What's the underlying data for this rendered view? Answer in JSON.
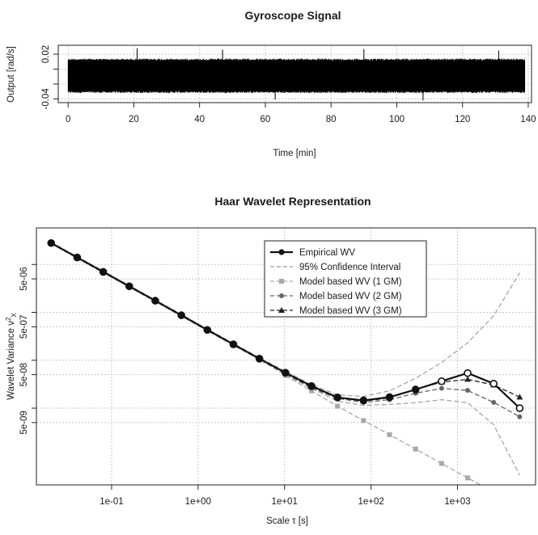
{
  "chart_data": [
    {
      "type": "line",
      "title": "Gyroscope Signal",
      "xlabel": "Time [min]",
      "ylabel": "Output [rad/s]",
      "xlim": [
        -3,
        141
      ],
      "ylim": [
        -0.045,
        0.032
      ],
      "x_ticks": [
        0,
        20,
        40,
        60,
        80,
        100,
        120,
        140
      ],
      "x_tick_labels": [
        "0",
        "20",
        "40",
        "60",
        "80",
        "100",
        "120",
        "140"
      ],
      "y_ticks": [
        -0.04,
        0.02
      ],
      "y_tick_labels": [
        "-0.04",
        "0.02"
      ],
      "grid": true,
      "signal": {
        "x_start": 0,
        "x_end": 139,
        "center": -0.009,
        "band_half_width": 0.0225,
        "spike_max": 0.028,
        "spike_min": -0.042
      }
    },
    {
      "type": "line",
      "title": "Haar Wavelet Representation",
      "xlabel": "Scale τ [s]",
      "ylabel": "Wavelet Variance ν",
      "ylabel_subscript": "X",
      "ylabel_accent": "2",
      "x_log": true,
      "y_log": true,
      "xlim": [
        0.0135,
        8000
      ],
      "ylim": [
        2.5e-10,
        5.8e-05
      ],
      "x_tick_labels": [
        "1e-01",
        "1e+00",
        "1e+01",
        "1e+02",
        "1e+03"
      ],
      "y_tick_labels": [
        "5e-09",
        "5e-08",
        "5e-07",
        "5e-06"
      ],
      "grid": true,
      "legend_position": "top-right",
      "legend": [
        "Empirical WV",
        "95% Confidence Interval",
        "Model based WV (1 GM)",
        "Model based WV (2 GM)",
        "Model based WV (3 GM)"
      ],
      "x": [
        0.02,
        0.04,
        0.08,
        0.16,
        0.32,
        0.64,
        1.28,
        2.56,
        5.12,
        10.24,
        20.48,
        40.96,
        81.92,
        163.84,
        327.68,
        655.36,
        1310.72,
        2621.44,
        5242.88
      ],
      "empirical": [
        2.8e-05,
        1.4e-05,
        7e-06,
        3.5e-06,
        1.75e-06,
        8.7e-07,
        4.3e-07,
        2.15e-07,
        1.08e-07,
        5.5e-08,
        2.9e-08,
        1.67e-08,
        1.45e-08,
        1.7e-08,
        2.45e-08,
        3.65e-08,
        5.4e-08,
        3.25e-08,
        1e-08
      ],
      "ci_upper": [
        2.9e-05,
        1.46e-05,
        7.3e-06,
        3.65e-06,
        1.83e-06,
        9.1e-07,
        4.5e-07,
        2.25e-07,
        1.13e-07,
        5.9e-08,
        3.1e-08,
        1.9e-08,
        1.75e-08,
        2.3e-08,
        4.2e-08,
        9e-08,
        2.3e-07,
        8.5e-07,
        6.7e-06
      ],
      "ci_lower": [
        2.7e-05,
        1.34e-05,
        6.7e-06,
        3.35e-06,
        1.67e-06,
        8.3e-07,
        4.1e-07,
        2.05e-07,
        1.02e-07,
        5e-08,
        2.6e-08,
        1.4e-08,
        1.15e-08,
        1.2e-08,
        1.3e-08,
        1.5e-08,
        1.3e-08,
        4.5e-09,
        4e-10
      ],
      "model_1gm": [
        2.8e-05,
        1.4e-05,
        7e-06,
        3.5e-06,
        1.75e-06,
        8.75e-07,
        4.37e-07,
        2.19e-07,
        1.09e-07,
        4.8e-08,
        2.3e-08,
        1.1e-08,
        5.5e-09,
        2.8e-09,
        1.4e-09,
        7e-10,
        3.5e-10,
        1.75e-10,
        8.8e-11
      ],
      "model_2gm": [
        2.8e-05,
        1.4e-05,
        7e-06,
        3.5e-06,
        1.75e-06,
        8.7e-07,
        4.3e-07,
        2.15e-07,
        1.07e-07,
        5.2e-08,
        2.65e-08,
        1.6e-08,
        1.32e-08,
        1.5e-08,
        2.05e-08,
        2.6e-08,
        2.35e-08,
        1.32e-08,
        6.6e-09
      ],
      "model_3gm": [
        2.8e-05,
        1.4e-05,
        7e-06,
        3.5e-06,
        1.75e-06,
        8.7e-07,
        4.3e-07,
        2.15e-07,
        1.08e-07,
        5.4e-08,
        2.8e-08,
        1.67e-08,
        1.4e-08,
        1.65e-08,
        2.45e-08,
        3.5e-08,
        4e-08,
        3.05e-08,
        1.7e-08
      ]
    }
  ]
}
